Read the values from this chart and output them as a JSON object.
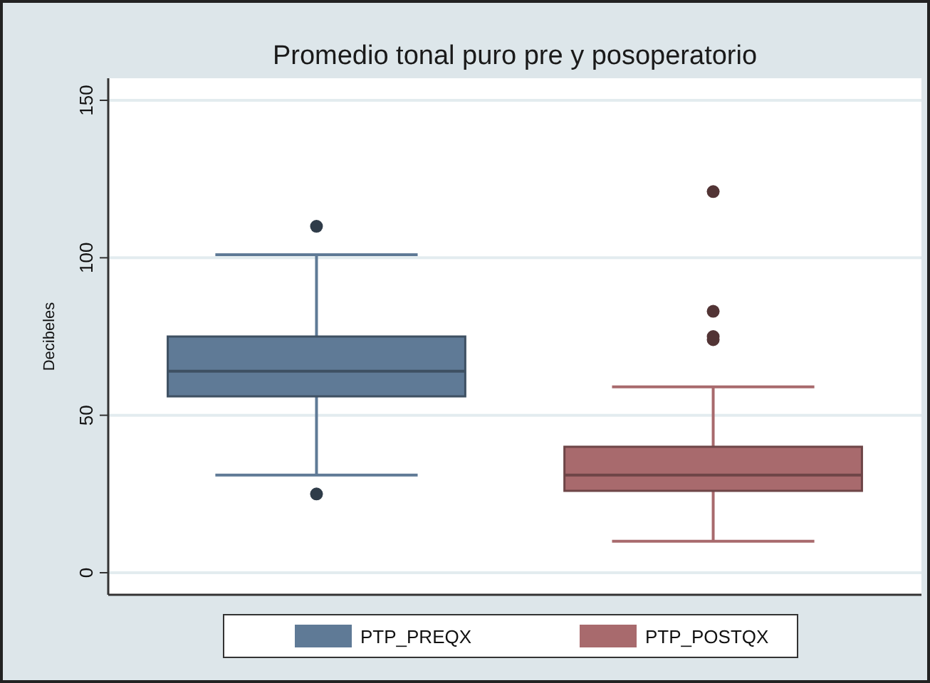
{
  "chart_data": {
    "type": "box",
    "title": "Promedio tonal puro pre y posoperatorio",
    "ylabel": "Decibeles",
    "categories": [
      null
    ],
    "ylim": [
      -7,
      157
    ],
    "yticks": [
      0,
      50,
      100,
      150
    ],
    "grid": "y",
    "legend": "bottom",
    "series": [
      {
        "name": "PTP_PREQX",
        "color": "#5f7a96",
        "boxes": [
          {
            "low": 31,
            "q1": 56,
            "median": 64,
            "q3": 75,
            "high": 101,
            "outliers": [
              110,
              25
            ]
          }
        ]
      },
      {
        "name": "PTP_POSTQX",
        "color": "#a86a6d",
        "boxes": [
          {
            "low": 10,
            "q1": 26,
            "median": 31,
            "q3": 40,
            "high": 59,
            "outliers": [
              121,
              83,
              75,
              74
            ]
          }
        ]
      }
    ]
  }
}
